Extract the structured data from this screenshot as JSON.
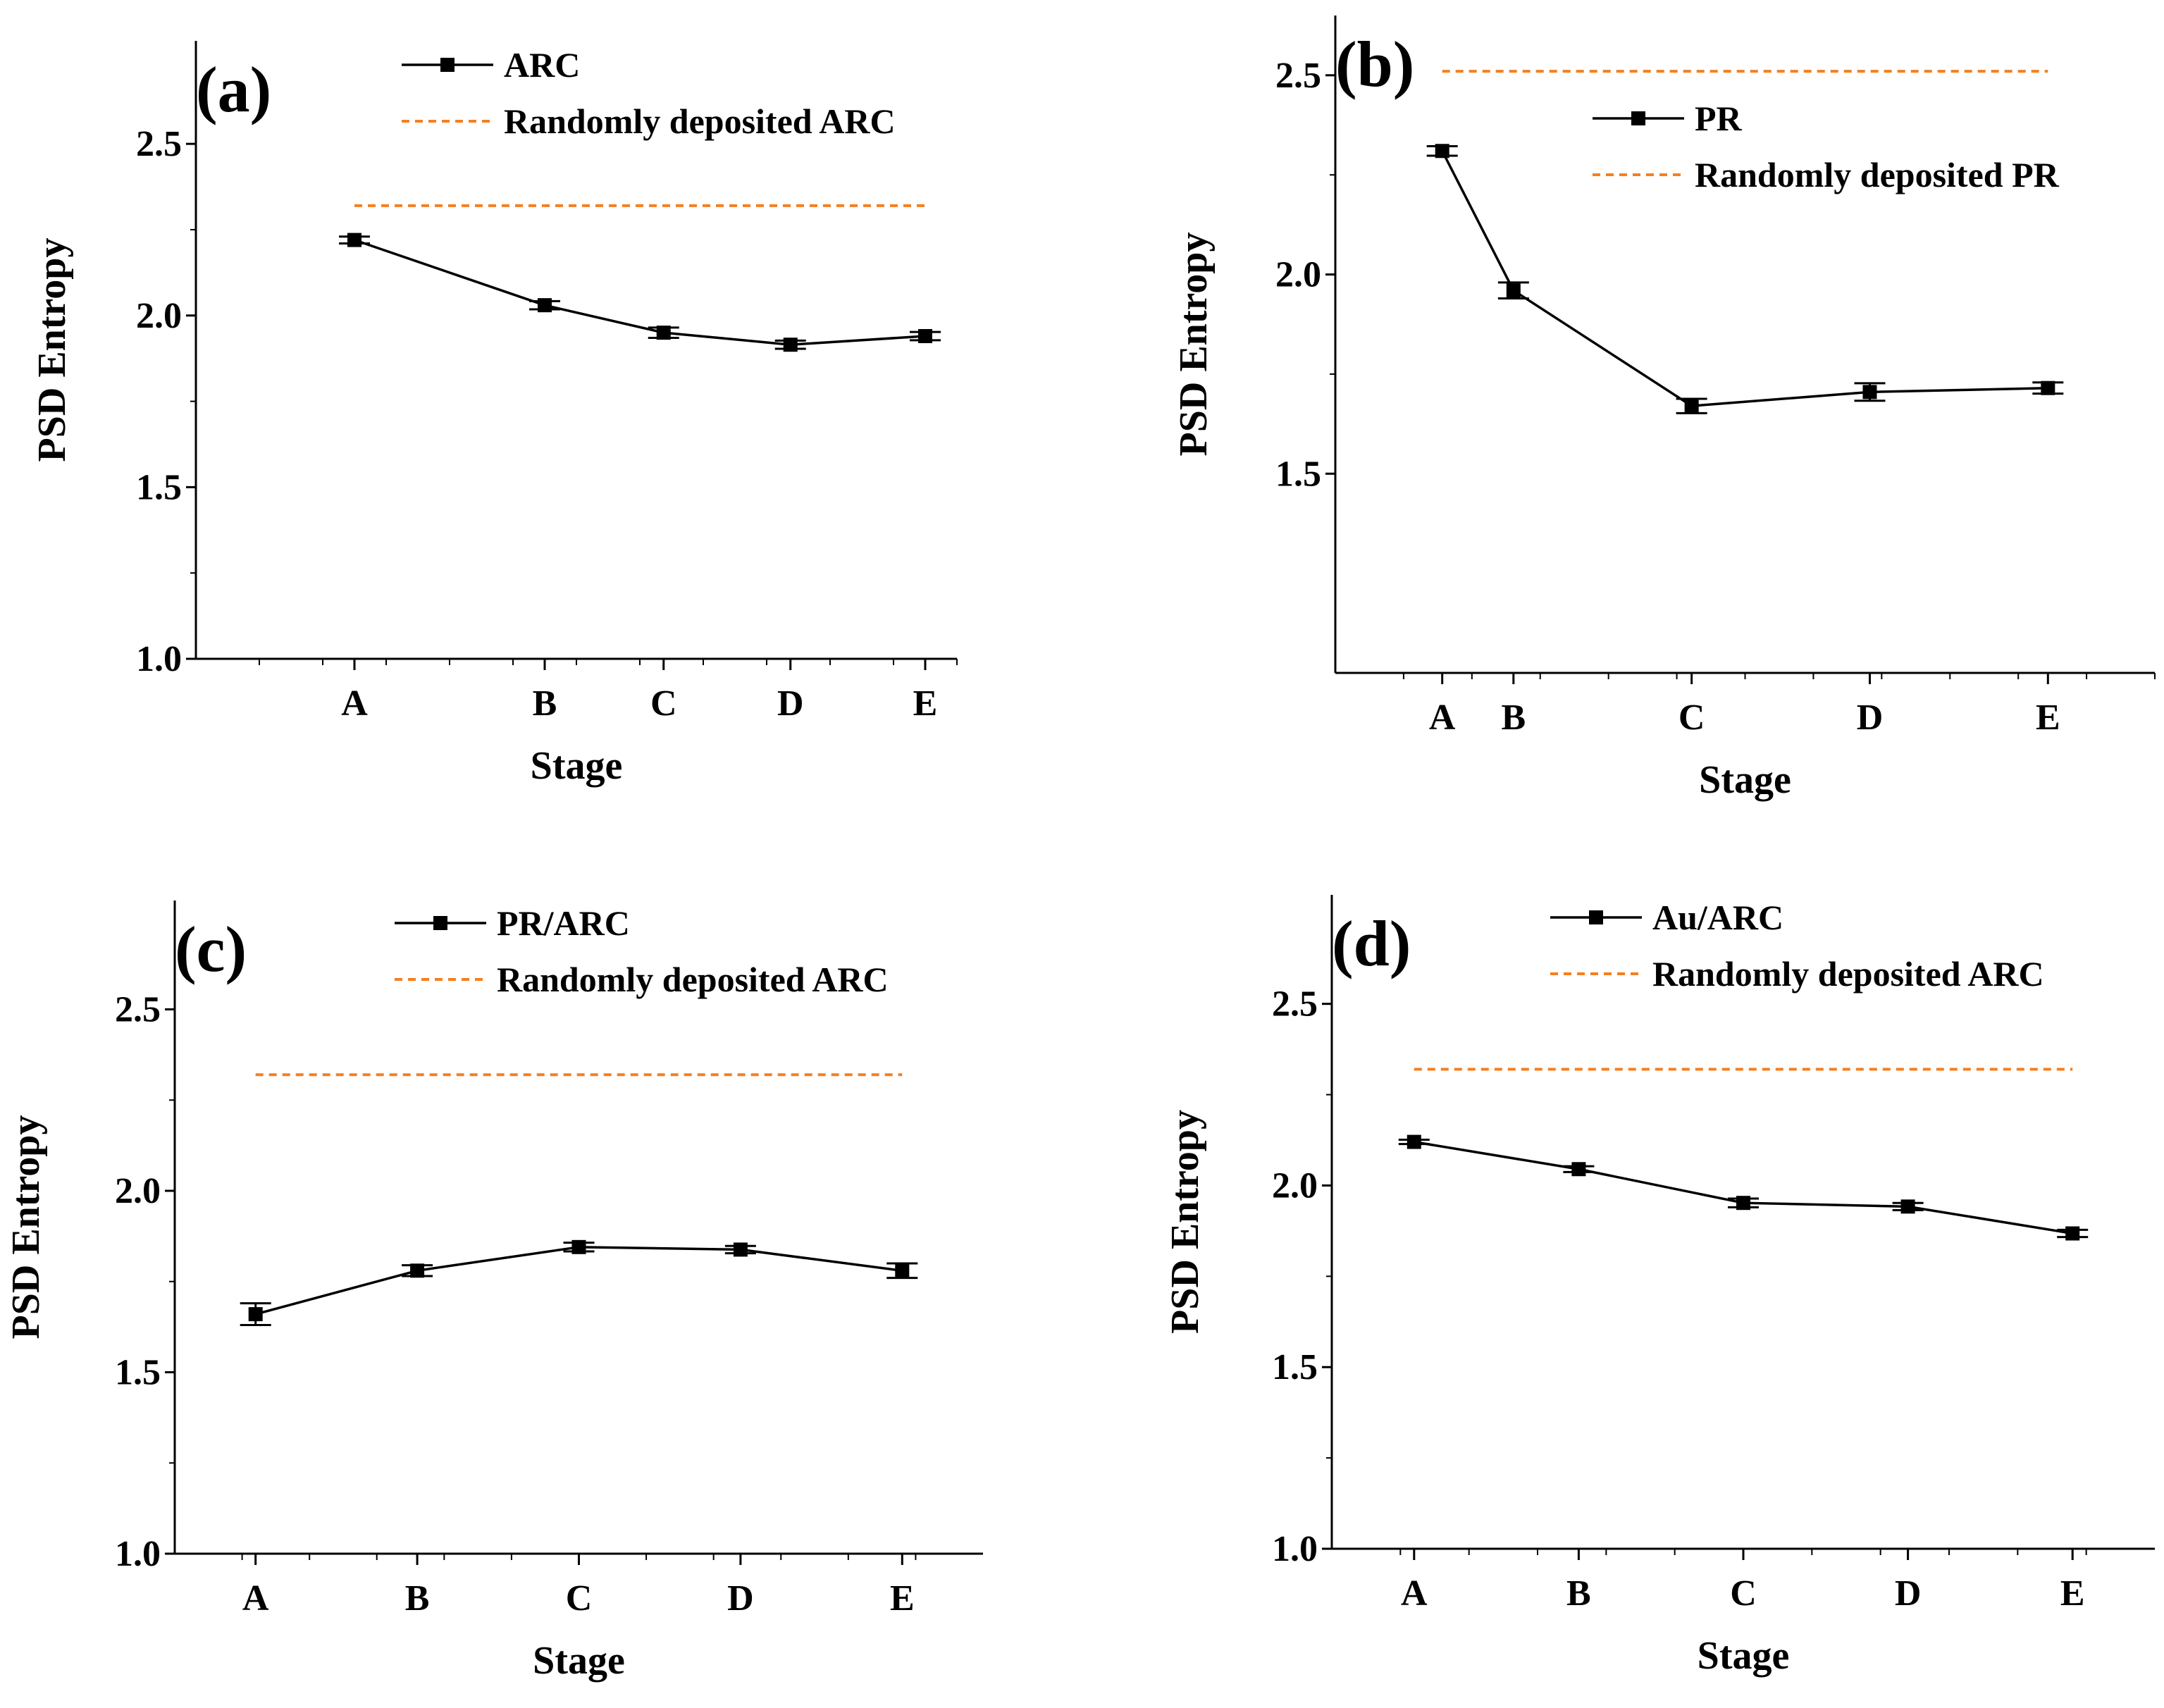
{
  "chart_data": [
    {
      "panel": "(a)",
      "type": "line",
      "xlabel": "Stage",
      "ylabel": "PSD Entropy",
      "ylim": [
        1.0,
        2.8
      ],
      "yticks": [
        1.0,
        1.5,
        2.0,
        2.5
      ],
      "ytick_labels": [
        "1.0",
        "1.5",
        "2.0",
        "2.5"
      ],
      "xlim": [
        -1.0,
        3.8
      ],
      "categories": [
        "A",
        "B",
        "C",
        "D",
        "E"
      ],
      "x": [
        0.0,
        1.2,
        1.95,
        2.75,
        3.6
      ],
      "grid": false,
      "legend_position": "top-right",
      "series": [
        {
          "name": "ARC",
          "values": [
            2.22,
            2.03,
            1.95,
            1.915,
            1.94
          ],
          "errors": [
            0.01,
            0.012,
            0.015,
            0.012,
            0.012
          ],
          "color": "#000000",
          "marker": "square"
        }
      ],
      "reference": {
        "name": "Randomly deposited ARC",
        "value": 2.32,
        "color": "#f57f20",
        "style": "dashed"
      }
    },
    {
      "panel": "(b)",
      "type": "line",
      "xlabel": "Stage",
      "ylabel": "PSD Entropy",
      "ylim": [
        1.0,
        2.65
      ],
      "yticks": [
        1.5,
        2.0,
        2.5
      ],
      "ytick_labels": [
        "1.5",
        "2.0",
        "2.5"
      ],
      "xlim": [
        -0.6,
        4.0
      ],
      "categories": [
        "A",
        "B",
        "C",
        "D",
        "E"
      ],
      "x": [
        0.0,
        0.4,
        1.4,
        2.4,
        3.4
      ],
      "grid": false,
      "legend_position": "top-right",
      "series": [
        {
          "name": "PR",
          "values": [
            2.31,
            1.96,
            1.67,
            1.705,
            1.715
          ],
          "errors": [
            0.012,
            0.02,
            0.018,
            0.022,
            0.014
          ],
          "color": "#000000",
          "marker": "square"
        }
      ],
      "reference": {
        "name": "Randomly deposited PR",
        "value": 2.51,
        "color": "#f57f20",
        "style": "dashed"
      }
    },
    {
      "panel": "(c)",
      "type": "line",
      "xlabel": "Stage",
      "ylabel": "PSD Entropy",
      "ylim": [
        1.0,
        2.8
      ],
      "yticks": [
        1.0,
        1.5,
        2.0,
        2.5
      ],
      "ytick_labels": [
        "1.0",
        "1.5",
        "2.0",
        "2.5"
      ],
      "xlim": [
        -0.5,
        4.5
      ],
      "categories": [
        "A",
        "B",
        "C",
        "D",
        "E"
      ],
      "x": [
        0,
        1,
        2,
        3,
        4
      ],
      "grid": false,
      "legend_position": "top-right",
      "series": [
        {
          "name": "PR/ARC",
          "values": [
            1.66,
            1.78,
            1.845,
            1.838,
            1.78
          ],
          "errors": [
            0.03,
            0.015,
            0.012,
            0.01,
            0.02
          ],
          "color": "#000000",
          "marker": "square"
        }
      ],
      "reference": {
        "name": "Randomly deposited ARC",
        "value": 2.32,
        "color": "#f57f20",
        "style": "dashed"
      }
    },
    {
      "panel": "(d)",
      "type": "line",
      "xlabel": "Stage",
      "ylabel": "PSD Entropy",
      "ylim": [
        1.0,
        2.8
      ],
      "yticks": [
        1.0,
        1.5,
        2.0,
        2.5
      ],
      "ytick_labels": [
        "1.0",
        "1.5",
        "2.0",
        "2.5"
      ],
      "xlim": [
        -0.5,
        4.5
      ],
      "categories": [
        "A",
        "B",
        "C",
        "D",
        "E"
      ],
      "x": [
        0,
        1,
        2,
        3,
        4
      ],
      "grid": false,
      "legend_position": "top-right",
      "series": [
        {
          "name": "Au/ARC",
          "values": [
            2.12,
            2.045,
            1.952,
            1.942,
            1.868
          ],
          "errors": [
            0.006,
            0.008,
            0.012,
            0.01,
            0.01
          ],
          "color": "#000000",
          "marker": "square"
        }
      ],
      "reference": {
        "name": "Randomly deposited ARC",
        "value": 2.32,
        "color": "#f57f20",
        "style": "dashed"
      }
    }
  ]
}
